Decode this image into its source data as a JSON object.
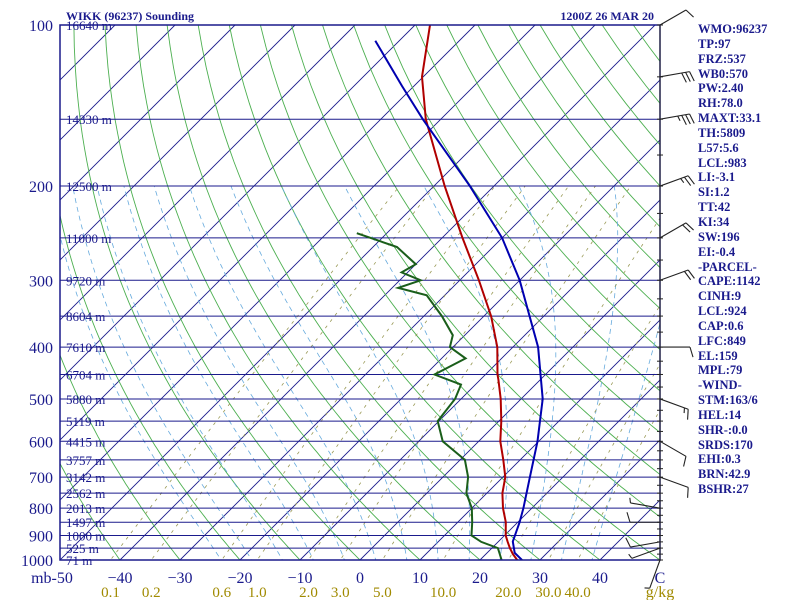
{
  "header": {
    "station": "WIKK (96237) Sounding",
    "time": "1200Z 26 MAR 20"
  },
  "chart_data": {
    "type": "skew-t",
    "pressure_unit": "mb",
    "mixing_ratio_unit": "g/kg",
    "pressure_levels": [
      100,
      200,
      300,
      400,
      500,
      600,
      700,
      800,
      900,
      1000
    ],
    "pressure_tick_labels": [
      "100",
      "200",
      "300",
      "400",
      "500",
      "600",
      "700",
      "800",
      "900",
      "1000"
    ],
    "height_labels": [
      {
        "p": 100,
        "label": "16640 m"
      },
      {
        "p": 150,
        "label": "14330 m"
      },
      {
        "p": 200,
        "label": "12500 m"
      },
      {
        "p": 250,
        "label": "11000 m"
      },
      {
        "p": 300,
        "label": "9720 m"
      },
      {
        "p": 350,
        "label": "8604 m"
      },
      {
        "p": 400,
        "label": "7610 m"
      },
      {
        "p": 450,
        "label": "6704 m"
      },
      {
        "p": 500,
        "label": "5880 m"
      },
      {
        "p": 550,
        "label": "5119 m"
      },
      {
        "p": 600,
        "label": "4415 m"
      },
      {
        "p": 650,
        "label": "3757 m"
      },
      {
        "p": 700,
        "label": "3142 m"
      },
      {
        "p": 750,
        "label": "2562 m"
      },
      {
        "p": 800,
        "label": "2013 m"
      },
      {
        "p": 850,
        "label": "1497 m"
      },
      {
        "p": 900,
        "label": "1000 m"
      },
      {
        "p": 950,
        "label": "525 m"
      },
      {
        "p": 1000,
        "label": "71 m"
      }
    ],
    "temperature_ticks": [
      -50,
      -40,
      -30,
      -20,
      -10,
      0,
      10,
      20,
      30,
      40
    ],
    "temperature_tick_labels": [
      "mb-50",
      "−40",
      "−30",
      "−20",
      "−10",
      "0",
      "10",
      "20",
      "30",
      "40"
    ],
    "corner_label": "C",
    "mixing_ratio_labels": [
      "0.1",
      "0.2",
      "0.6",
      "1.0",
      "2.0",
      "3.0",
      "5.0",
      "10.0",
      "20.0",
      "30.0",
      "40.0"
    ],
    "mixing_ratio_values": [
      0.1,
      0.2,
      0.6,
      1.0,
      2.0,
      3.0,
      5.0,
      10.0,
      20.0,
      30.0,
      40.0
    ],
    "x_range_c_at_1000mb": [
      -50,
      50
    ],
    "y_range_mb": [
      100,
      1000
    ],
    "series": [
      {
        "key": "temperature",
        "values": [
          {
            "p": 1000,
            "t": 26.2
          },
          {
            "p": 975,
            "t": 24.5
          },
          {
            "p": 950,
            "t": 23.0
          },
          {
            "p": 925,
            "t": 21.6
          },
          {
            "p": 900,
            "t": 20.2
          },
          {
            "p": 850,
            "t": 18.0
          },
          {
            "p": 800,
            "t": 15.2
          },
          {
            "p": 750,
            "t": 12.6
          },
          {
            "p": 700,
            "t": 10.4
          },
          {
            "p": 650,
            "t": 7.2
          },
          {
            "p": 600,
            "t": 3.6
          },
          {
            "p": 550,
            "t": 0.4
          },
          {
            "p": 500,
            "t": -3.4
          },
          {
            "p": 460,
            "t": -7.0
          },
          {
            "p": 450,
            "t": -8.0
          },
          {
            "p": 400,
            "t": -12.6
          },
          {
            "p": 350,
            "t": -18.8
          },
          {
            "p": 300,
            "t": -26.8
          },
          {
            "p": 250,
            "t": -36.6
          },
          {
            "p": 200,
            "t": -48.2
          },
          {
            "p": 150,
            "t": -62.5
          },
          {
            "p": 125,
            "t": -70.2
          },
          {
            "p": 100,
            "t": -77.5
          }
        ]
      },
      {
        "key": "dewpoint",
        "values": [
          {
            "p": 1000,
            "t": 23.6
          },
          {
            "p": 950,
            "t": 21.0
          },
          {
            "p": 925,
            "t": 17.2
          },
          {
            "p": 900,
            "t": 14.5
          },
          {
            "p": 850,
            "t": 12.4
          },
          {
            "p": 800,
            "t": 10.0
          },
          {
            "p": 750,
            "t": 6.6
          },
          {
            "p": 700,
            "t": 4.2
          },
          {
            "p": 650,
            "t": 0.8
          },
          {
            "p": 600,
            "t": -6.0
          },
          {
            "p": 550,
            "t": -10.2
          },
          {
            "p": 500,
            "t": -11.0
          },
          {
            "p": 470,
            "t": -12.4
          },
          {
            "p": 450,
            "t": -18.5
          },
          {
            "p": 420,
            "t": -16.0
          },
          {
            "p": 400,
            "t": -20.5
          },
          {
            "p": 380,
            "t": -22.0
          },
          {
            "p": 350,
            "t": -27.0
          },
          {
            "p": 320,
            "t": -33.0
          },
          {
            "p": 310,
            "t": -39.0
          },
          {
            "p": 300,
            "t": -36.5
          },
          {
            "p": 290,
            "t": -41.0
          },
          {
            "p": 280,
            "t": -40.0
          },
          {
            "p": 260,
            "t": -46.0
          },
          {
            "p": 245,
            "t": -55.0
          }
        ]
      },
      {
        "key": "parcel",
        "values": [
          {
            "p": 1000,
            "t": 27.0
          },
          {
            "p": 970,
            "t": 24.6
          },
          {
            "p": 924,
            "t": 22.4
          },
          {
            "p": 850,
            "t": 20.3
          },
          {
            "p": 800,
            "t": 18.6
          },
          {
            "p": 700,
            "t": 14.5
          },
          {
            "p": 600,
            "t": 9.8
          },
          {
            "p": 500,
            "t": 3.6
          },
          {
            "p": 400,
            "t": -5.8
          },
          {
            "p": 300,
            "t": -20.0
          },
          {
            "p": 250,
            "t": -30.0
          },
          {
            "p": 200,
            "t": -44.0
          },
          {
            "p": 150,
            "t": -63.0
          },
          {
            "p": 130,
            "t": -72.0
          },
          {
            "p": 107,
            "t": -84.0
          }
        ]
      }
    ],
    "wind_barbs": [
      {
        "p": 1000,
        "dir": 200,
        "spd": 5
      },
      {
        "p": 950,
        "dir": 250,
        "spd": 5
      },
      {
        "p": 925,
        "dir": 260,
        "spd": 10
      },
      {
        "p": 850,
        "dir": 270,
        "spd": 10
      },
      {
        "p": 800,
        "dir": 280,
        "spd": 5
      },
      {
        "p": 700,
        "dir": 110,
        "spd": 10
      },
      {
        "p": 600,
        "dir": 120,
        "spd": 10
      },
      {
        "p": 500,
        "dir": 110,
        "spd": 15
      },
      {
        "p": 400,
        "dir": 90,
        "spd": 10
      },
      {
        "p": 300,
        "dir": 70,
        "spd": 20
      },
      {
        "p": 250,
        "dir": 60,
        "spd": 20
      },
      {
        "p": 200,
        "dir": 70,
        "spd": 25
      },
      {
        "p": 150,
        "dir": 80,
        "spd": 35
      },
      {
        "p": 125,
        "dir": 80,
        "spd": 30
      },
      {
        "p": 100,
        "dir": 60,
        "spd": 10
      }
    ]
  },
  "indices": [
    "WMO:96237",
    "TP:97",
    "FRZ:537",
    "WB0:570",
    "PW:2.40",
    "RH:78.0",
    "MAXT:33.1",
    "TH:5809",
    "L57:5.6",
    "LCL:983",
    "LI:-3.1",
    "SI:1.2",
    "TT:42",
    "KI:34",
    "SW:196",
    "EI:-0.4",
    "-PARCEL-",
    "CAPE:1142",
    "CINH:9",
    "LCL:924",
    "CAP:0.6",
    "LFC:849",
    "EL:159",
    "MPL:79",
    "-WIND-",
    "STM:163/6",
    "HEL:14",
    "SHR-:0.0",
    "SRDS:170",
    "EHI:0.3",
    "BRN:42.9",
    "BSHR:27"
  ],
  "colors": {
    "frame": "#1a1a8c",
    "isobar": "#1a1a8c",
    "isotherm": "#1a1a8c",
    "dry_adiabat": "#4caf50",
    "moist_adiabat": "#66aadd",
    "mixing_ratio": "#999955",
    "temperature": "#b00000",
    "dewpoint": "#1a5e1a",
    "parcel": "#0000b0",
    "text": "#1a1a8c",
    "axis_label": "#a08a00"
  }
}
